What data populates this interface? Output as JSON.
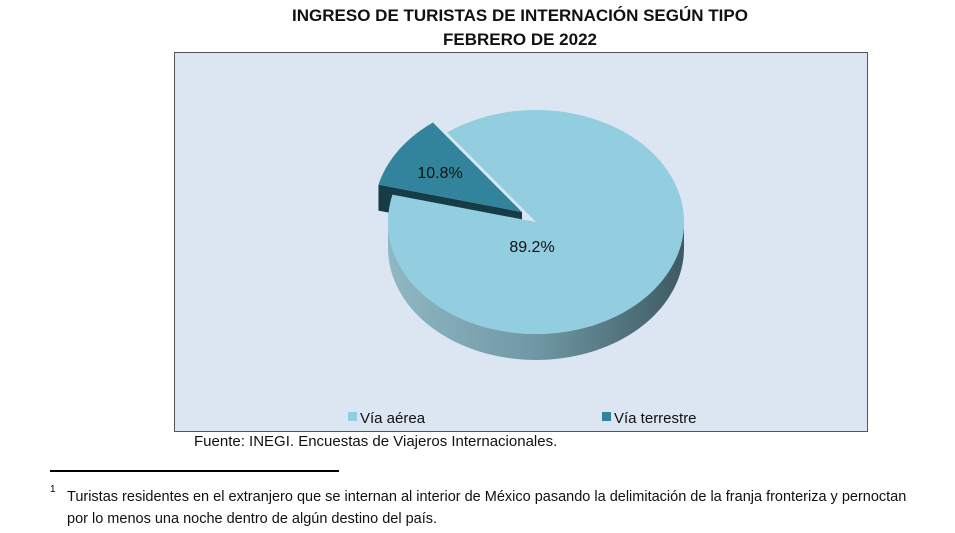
{
  "chart_data": {
    "type": "pie",
    "title": "Ingreso de turistas de internación según tipo",
    "subtitle": "Febrero de 2022",
    "categories": [
      "Vía aérea",
      "Vía terrestre"
    ],
    "values": [
      89.2,
      10.8
    ],
    "data_labels": [
      "89.2%",
      "10.8%"
    ],
    "colors": [
      "#92cde0",
      "#31849b"
    ],
    "exploded": "Vía terrestre",
    "three_d": true,
    "legend_placement": "bottom",
    "background": "#dce6f2"
  },
  "source": "Fuente: INEGI. Encuestas de Viajeros Internacionales.",
  "footnote": {
    "marker": "1",
    "line1": "Turistas residentes en el extranjero que se internan al interior de México pasando la delimitación de la franja fronteriza y pernoctan",
    "line2": "por lo menos una noche dentro de algún destino del país."
  }
}
